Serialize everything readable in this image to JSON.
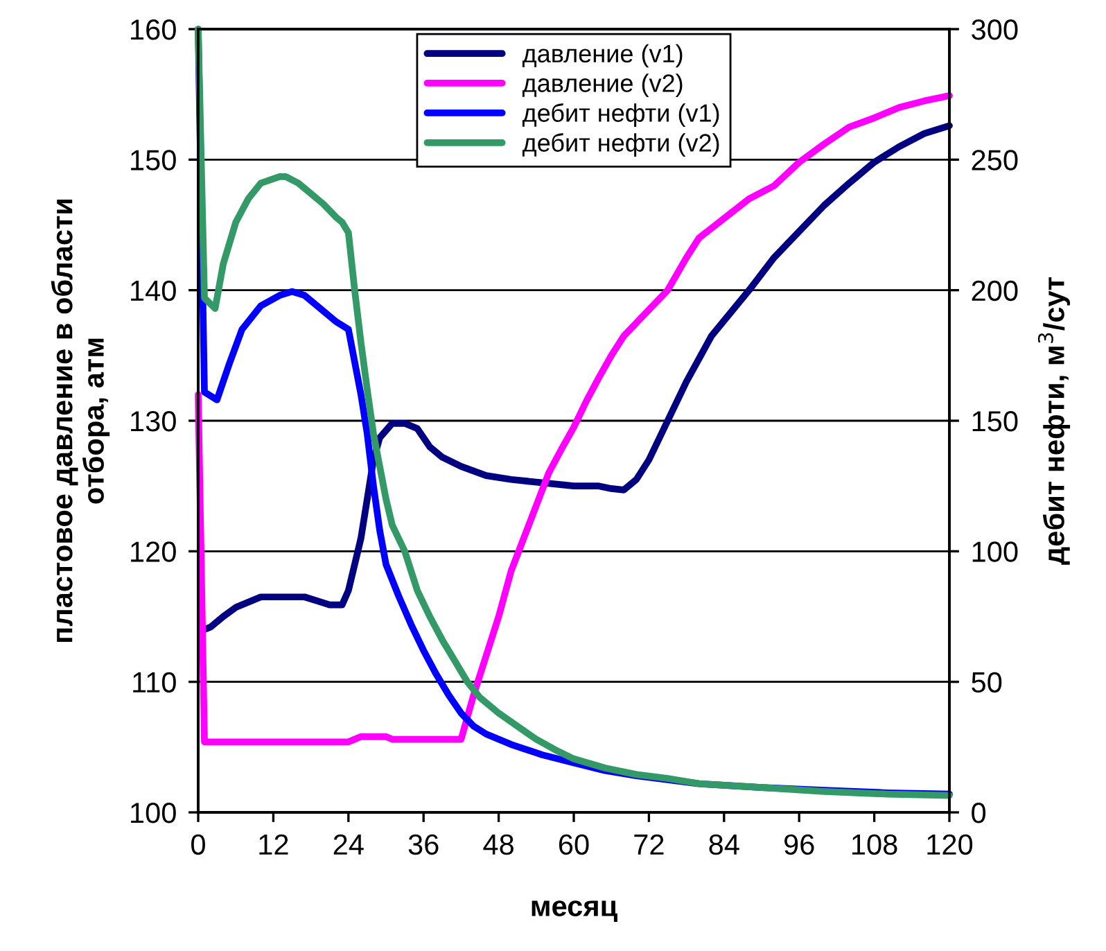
{
  "chart_data": {
    "type": "line",
    "xlabel": "месяц",
    "ylabel": "пластовое давление в области\nотбора, атм",
    "y2label": "дебит нефти, м$^{3}$/сут",
    "xlim": [
      0,
      120
    ],
    "xticks": [
      0,
      12,
      24,
      36,
      48,
      60,
      72,
      84,
      96,
      108,
      120
    ],
    "ylim": [
      100,
      160
    ],
    "yticks": [
      100,
      110,
      120,
      130,
      140,
      150,
      160
    ],
    "y2lim": [
      0,
      300
    ],
    "y2ticks": [
      0,
      50,
      100,
      150,
      200,
      250,
      300
    ],
    "grid": "y",
    "legend": "top",
    "marker": "none",
    "line_style": "solid",
    "series": [
      {
        "name": "давление (v1)",
        "color": "#000080",
        "x": [
          1,
          2,
          4,
          6,
          8,
          10,
          14,
          17,
          19,
          21,
          23,
          24,
          26,
          27,
          28,
          29,
          31,
          33,
          35,
          37,
          39,
          42,
          46,
          50,
          56,
          60,
          64,
          66,
          68,
          70,
          72,
          75,
          78,
          82,
          88,
          92,
          96,
          100,
          104,
          108,
          112,
          116,
          120
        ],
        "values": [
          114,
          114.2,
          115,
          115.7,
          116.1,
          116.5,
          116.5,
          116.5,
          116.2,
          115.9,
          115.9,
          117,
          121,
          124,
          127,
          128.7,
          129.8,
          129.8,
          129.4,
          128,
          127.2,
          126.5,
          125.8,
          125.5,
          125.2,
          125,
          125,
          124.8,
          124.7,
          125.5,
          127,
          130,
          133,
          136.5,
          140,
          142.5,
          144.5,
          146.5,
          148.2,
          149.8,
          151,
          152,
          152.6
        ]
      },
      {
        "name": "давление (v2)",
        "color": "#ff00ff",
        "x": [
          0,
          1,
          24,
          26,
          30,
          31,
          42,
          44,
          46,
          48,
          50,
          52,
          54,
          56,
          58,
          60,
          62,
          64,
          66,
          68,
          72,
          75,
          78,
          80,
          84,
          88,
          92,
          96,
          100,
          104,
          108,
          112,
          116,
          120
        ],
        "values": [
          132,
          105.4,
          105.4,
          105.8,
          105.8,
          105.6,
          105.6,
          109,
          112,
          115,
          118.5,
          121,
          123.5,
          126,
          127.8,
          129.5,
          131.5,
          133.3,
          135,
          136.5,
          138.5,
          140,
          142.5,
          144,
          145.5,
          147,
          148,
          149.8,
          151.2,
          152.5,
          153.2,
          154,
          154.5,
          154.9
        ]
      },
      {
        "name": "дебит нефти (v1)",
        "color": "#0000ff",
        "axis": "y2",
        "x": [
          0,
          1,
          3,
          5,
          7,
          10,
          13,
          15,
          17,
          19,
          22,
          24,
          26,
          27,
          28,
          29,
          30,
          32,
          34,
          36,
          38,
          40,
          42,
          44,
          46,
          50,
          55,
          60,
          65,
          70,
          75,
          80,
          90,
          100,
          110,
          120
        ],
        "values": [
          300,
          161,
          158,
          172,
          185,
          194,
          198,
          199.5,
          198,
          194,
          188,
          185,
          160,
          145,
          125,
          108,
          95,
          83,
          72,
          62,
          53,
          45,
          38,
          33,
          30,
          26,
          22,
          19,
          16,
          14,
          12.5,
          11,
          9.5,
          8.5,
          7.5,
          7
        ]
      },
      {
        "name": "дебит нефти (v2)",
        "color": "#339966",
        "axis": "y2",
        "x": [
          0,
          1,
          2.7,
          4,
          6,
          8,
          10,
          13,
          14,
          16,
          18,
          20,
          22,
          23,
          24,
          25,
          26,
          27,
          28,
          30,
          31,
          33,
          35,
          37,
          39,
          41,
          43,
          45,
          48,
          51,
          54,
          57,
          60,
          65,
          70,
          75,
          80,
          90,
          100,
          110,
          120
        ],
        "values": [
          300,
          197,
          193,
          210,
          226,
          235,
          241,
          243.5,
          243.5,
          241,
          237,
          233,
          228,
          226,
          222,
          200,
          180,
          162,
          145,
          120,
          110,
          100,
          85,
          75,
          66,
          58,
          50,
          44,
          38,
          33,
          28,
          24,
          20.5,
          17,
          14.5,
          13,
          11,
          9.5,
          8,
          7,
          6.5
        ]
      }
    ]
  }
}
